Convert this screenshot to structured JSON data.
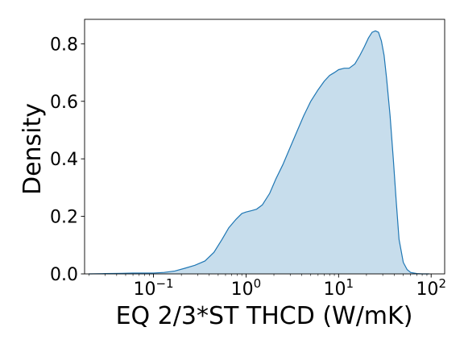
{
  "chart_data": {
    "type": "area",
    "title": "",
    "xlabel": "EQ 2/3*ST THCD (W/mK)",
    "ylabel": "Density",
    "xscale": "log",
    "xlim": [
      0.018,
      140
    ],
    "ylim": [
      0,
      0.885
    ],
    "grid": false,
    "legend": "none",
    "colors": {
      "line": "#1f77b4",
      "fill": "#1f77b4",
      "fill_opacity": 0.25
    },
    "xticks": [
      {
        "value": 0.1,
        "base": "10",
        "exp": "−1"
      },
      {
        "value": 1,
        "base": "10",
        "exp": "0"
      },
      {
        "value": 10,
        "base": "10",
        "exp": "1"
      },
      {
        "value": 100,
        "base": "10",
        "exp": "2"
      }
    ],
    "yticks": [
      {
        "value": 0.0,
        "label": "0.0"
      },
      {
        "value": 0.2,
        "label": "0.2"
      },
      {
        "value": 0.4,
        "label": "0.4"
      },
      {
        "value": 0.6,
        "label": "0.6"
      },
      {
        "value": 0.8,
        "label": "0.8"
      }
    ],
    "series": [
      {
        "x": [
          0.02,
          0.03,
          0.045,
          0.06,
          0.08,
          0.1,
          0.13,
          0.17,
          0.22,
          0.28,
          0.36,
          0.45,
          0.55,
          0.65,
          0.78,
          0.9,
          1.0,
          1.15,
          1.3,
          1.5,
          1.8,
          2.1,
          2.5,
          3.0,
          3.6,
          4.2,
          5.0,
          6.0,
          7.0,
          8.0,
          9.0,
          10.0,
          11.5,
          13.0,
          15.0,
          17.0,
          19.0,
          21.0,
          23.0,
          25.0,
          27.0,
          29.0,
          31.0,
          33.0,
          36.0,
          39.0,
          42.0,
          45.0,
          50.0,
          55.0,
          60.0,
          70.0,
          80.0,
          95.0
        ],
        "y": [
          0.0,
          0.001,
          0.002,
          0.003,
          0.003,
          0.003,
          0.005,
          0.01,
          0.02,
          0.03,
          0.045,
          0.075,
          0.12,
          0.16,
          0.19,
          0.21,
          0.215,
          0.22,
          0.225,
          0.24,
          0.28,
          0.33,
          0.38,
          0.44,
          0.5,
          0.55,
          0.6,
          0.64,
          0.67,
          0.69,
          0.7,
          0.71,
          0.715,
          0.715,
          0.73,
          0.76,
          0.79,
          0.82,
          0.84,
          0.845,
          0.84,
          0.81,
          0.76,
          0.68,
          0.55,
          0.4,
          0.25,
          0.12,
          0.04,
          0.015,
          0.005,
          0.001,
          0.0,
          0.0
        ]
      }
    ]
  }
}
